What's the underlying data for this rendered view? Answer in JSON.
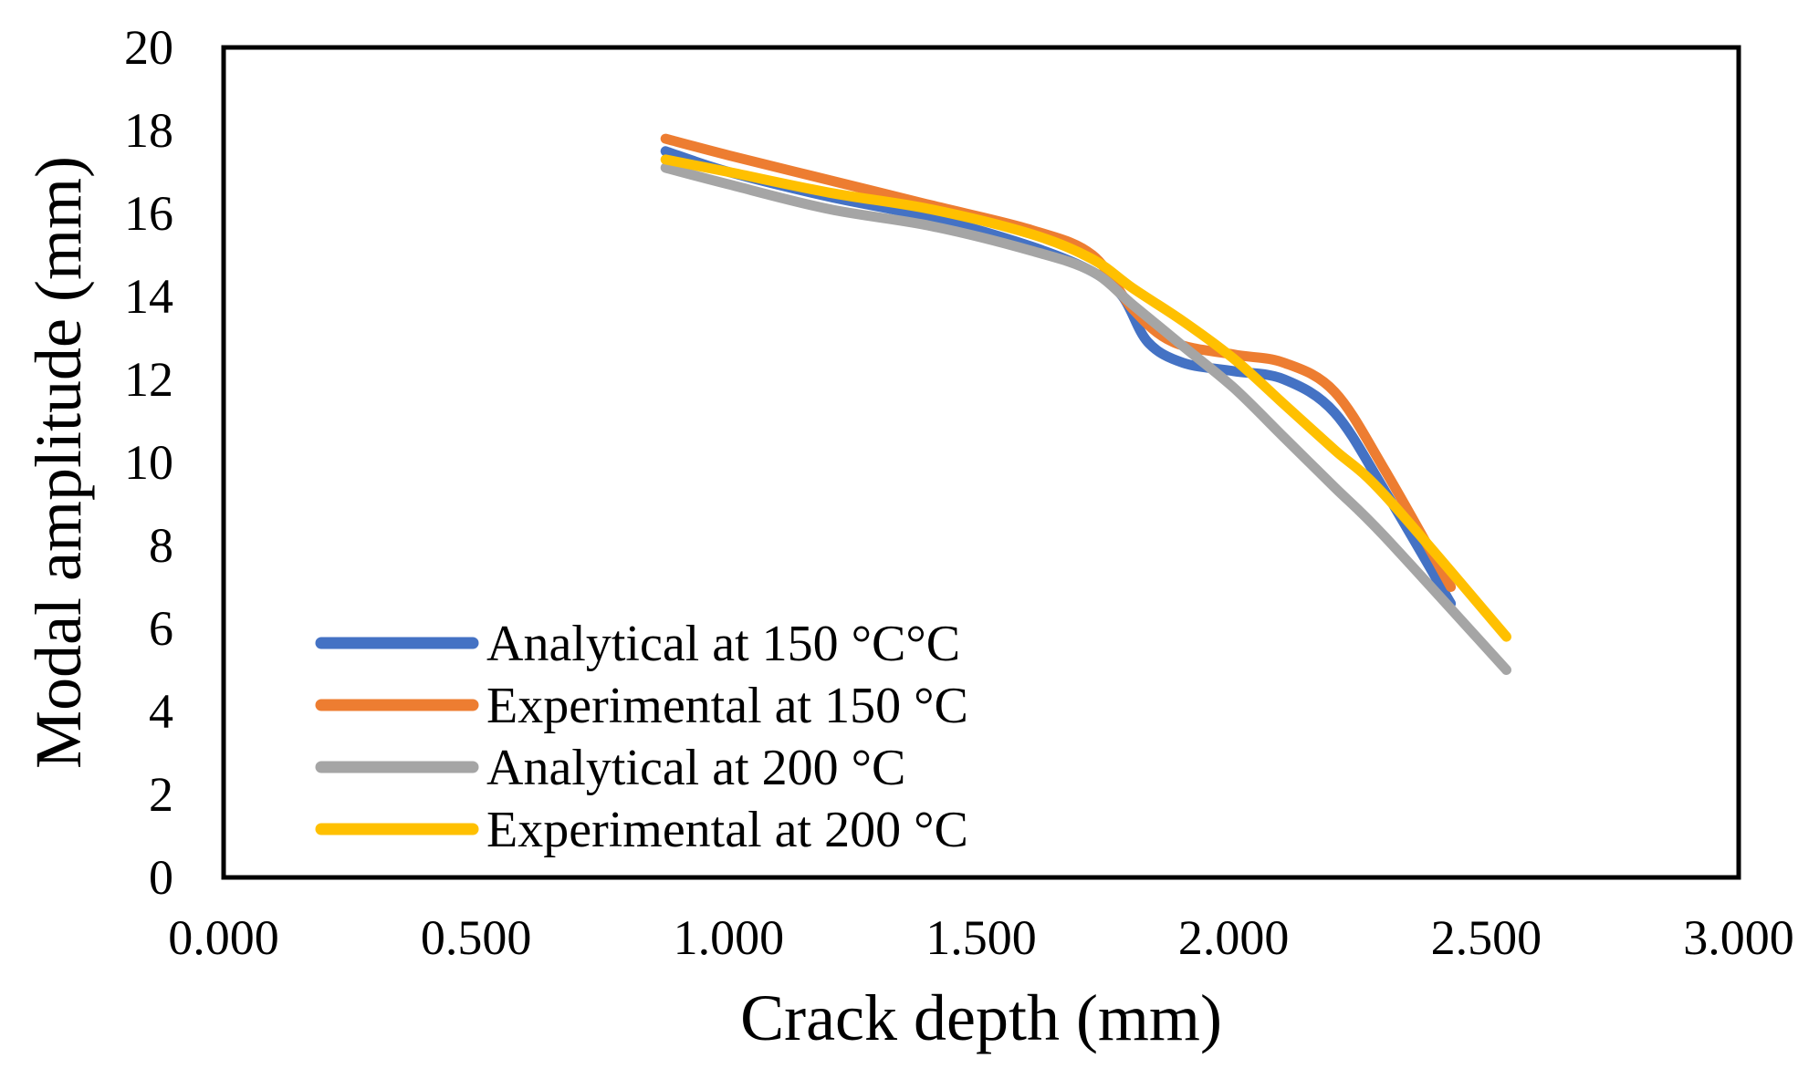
{
  "chart_data": {
    "type": "line",
    "title": "",
    "xlabel": "Crack depth (mm)",
    "ylabel": "Modal amplitude (mm)",
    "xlim": [
      0,
      3
    ],
    "ylim": [
      0,
      20
    ],
    "xticks": [
      "0.000",
      "0.500",
      "1.000",
      "1.500",
      "2.000",
      "2.500",
      "3.000"
    ],
    "yticks": [
      "0",
      "2",
      "4",
      "6",
      "8",
      "10",
      "12",
      "14",
      "16",
      "18",
      "20"
    ],
    "grid": false,
    "legend_position": "bottom-left",
    "series": [
      {
        "name": "Analytical at 150 °C°C",
        "color": "#4472C4",
        "x": [
          0.875,
          1.0,
          1.2,
          1.4,
          1.6,
          1.72,
          1.78,
          1.83,
          1.9,
          2.0,
          2.1,
          2.2,
          2.3,
          2.43
        ],
        "y": [
          17.5,
          17.0,
          16.4,
          15.9,
          15.2,
          14.6,
          14.0,
          12.9,
          12.4,
          12.2,
          12.0,
          11.2,
          9.3,
          6.6
        ]
      },
      {
        "name": "Experimental at 150 °C",
        "color": "#ED7D31",
        "x": [
          0.875,
          1.0,
          1.2,
          1.4,
          1.6,
          1.72,
          1.8,
          1.88,
          2.0,
          2.1,
          2.2,
          2.3,
          2.43
        ],
        "y": [
          17.8,
          17.4,
          16.8,
          16.2,
          15.6,
          15.0,
          13.7,
          12.9,
          12.6,
          12.4,
          11.7,
          9.8,
          7.0
        ]
      },
      {
        "name": "Analytical at 200 °C",
        "color": "#A5A5A5",
        "x": [
          0.875,
          1.0,
          1.2,
          1.4,
          1.6,
          1.72,
          1.8,
          1.9,
          2.0,
          2.1,
          2.2,
          2.3,
          2.54
        ],
        "y": [
          17.1,
          16.7,
          16.1,
          15.7,
          15.1,
          14.6,
          13.8,
          12.8,
          11.8,
          10.6,
          9.4,
          8.2,
          5.0
        ]
      },
      {
        "name": "Experimental at 200 °C",
        "color": "#FFC000",
        "x": [
          0.875,
          1.0,
          1.2,
          1.4,
          1.6,
          1.72,
          1.8,
          1.9,
          2.0,
          2.1,
          2.2,
          2.3,
          2.54
        ],
        "y": [
          17.3,
          17.0,
          16.5,
          16.1,
          15.5,
          14.9,
          14.2,
          13.4,
          12.5,
          11.4,
          10.3,
          9.2,
          5.8
        ]
      }
    ]
  }
}
